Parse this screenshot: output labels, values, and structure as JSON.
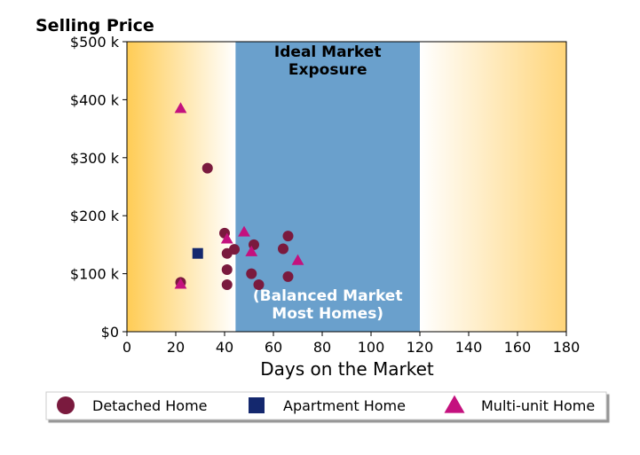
{
  "chart_data": {
    "type": "scatter",
    "title": "",
    "ylabel": "Selling Price",
    "xlabel": "Days on the Market",
    "xlim": [
      0,
      180
    ],
    "ylim": [
      0,
      500000
    ],
    "x_ticks": [
      0,
      20,
      40,
      60,
      80,
      100,
      120,
      140,
      160,
      180
    ],
    "x_tick_labels": [
      "0",
      "20",
      "40",
      "60",
      "80",
      "100",
      "120",
      "140",
      "160",
      "180"
    ],
    "y_ticks": [
      0,
      100000,
      200000,
      300000,
      400000,
      500000
    ],
    "y_tick_labels": [
      "$0",
      "$100 k",
      "$200 k",
      "$300 k",
      "$400 k",
      "$500 k"
    ],
    "bands": [
      {
        "type": "gradient",
        "from": 0,
        "to": 44.5,
        "color_edge": "#ffcc55",
        "color_inner": "#ffffff",
        "direction": "fade-right"
      },
      {
        "type": "solid",
        "from": 44.5,
        "to": 120,
        "color": "#6aa0cc"
      },
      {
        "type": "gradient",
        "from": 120,
        "to": 180,
        "color_edge": "#ffd57a",
        "color_inner": "#ffffff",
        "direction": "fade-left"
      }
    ],
    "annotations": [
      {
        "name": "ideal-market-exposure",
        "lines": [
          "Ideal Market",
          "Exposure"
        ],
        "position": "top-center-of-band"
      },
      {
        "name": "balanced-market",
        "lines": [
          "(Balanced Market",
          "Most Homes)"
        ],
        "position": "bottom-center-of-band"
      }
    ],
    "series": [
      {
        "name": "Detached Home",
        "marker": "circle",
        "color": "#7a1a3e",
        "points": [
          {
            "x": 22,
            "y": 85000
          },
          {
            "x": 33,
            "y": 282000
          },
          {
            "x": 40,
            "y": 170000
          },
          {
            "x": 41,
            "y": 135000
          },
          {
            "x": 41,
            "y": 107000
          },
          {
            "x": 41,
            "y": 81000
          },
          {
            "x": 44,
            "y": 142000
          },
          {
            "x": 51,
            "y": 100000
          },
          {
            "x": 52,
            "y": 150000
          },
          {
            "x": 54,
            "y": 81000
          },
          {
            "x": 64,
            "y": 143000
          },
          {
            "x": 66,
            "y": 165000
          },
          {
            "x": 66,
            "y": 95000
          }
        ]
      },
      {
        "name": "Apartment Home",
        "marker": "square",
        "color": "#14286e",
        "points": [
          {
            "x": 29,
            "y": 135000
          }
        ]
      },
      {
        "name": "Multi-unit Home",
        "marker": "triangle",
        "color": "#c4117e",
        "points": [
          {
            "x": 22,
            "y": 385000
          },
          {
            "x": 22,
            "y": 82000
          },
          {
            "x": 41,
            "y": 160000
          },
          {
            "x": 48,
            "y": 172000
          },
          {
            "x": 51,
            "y": 138000
          },
          {
            "x": 70,
            "y": 123000
          }
        ]
      }
    ],
    "legend": {
      "placement": "bottom",
      "columns": 3
    }
  }
}
